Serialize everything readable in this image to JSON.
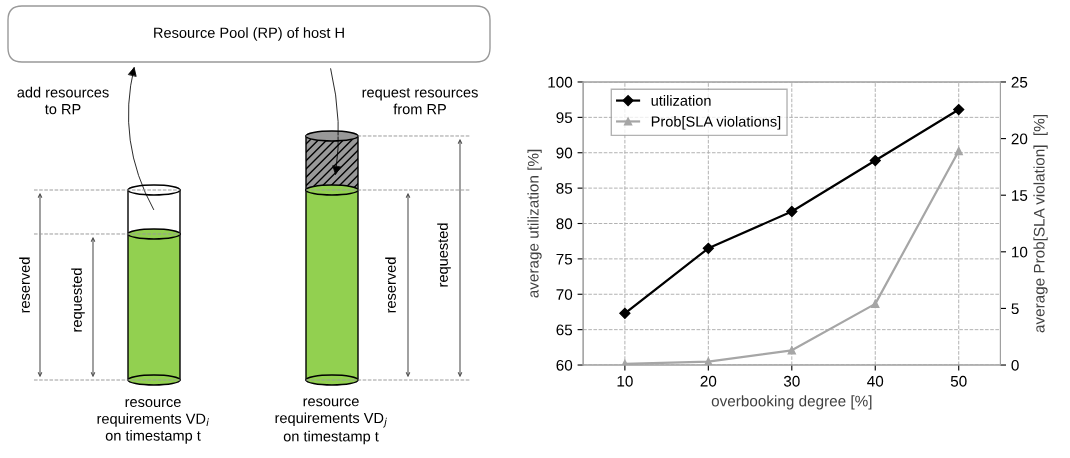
{
  "chart_data": [
    {
      "type": "other",
      "title": "Resource Pool (RP) of host H",
      "annotations": [
        "add resources\nto RP",
        "request resources\nfrom RP",
        "reserved",
        "requested",
        "reserved",
        "requested",
        "resource\nrequirements VD$_{i}$\non timestamp t",
        "resource\nrequirements VD$_{j}$\non timestamp t"
      ]
    },
    {
      "type": "line",
      "categories": [
        "10",
        "20",
        "30",
        "40",
        "50"
      ],
      "xlabel": "overbooking degree [%]",
      "ylabel": "average utilization [%]",
      "y2label": "average Prob[SLA violation]  [%]",
      "ylim": [
        60,
        100
      ],
      "yticks": [
        60,
        65,
        70,
        75,
        80,
        85,
        90,
        95,
        100
      ],
      "y2lim": [
        0,
        25
      ],
      "y2ticks": [
        0,
        5,
        10,
        15,
        20,
        25
      ],
      "grid": true,
      "legend": "top left",
      "series": [
        {
          "name": "utilization",
          "color": "#000000",
          "marker": "diamond",
          "values": [
            67.3,
            76.5,
            81.7,
            88.9,
            96.1
          ]
        },
        {
          "name": "Prob[SLA violations]",
          "color": "#a6a6a6",
          "marker": "triangle",
          "axis": "y2",
          "values": [
            0.1,
            0.3,
            1.3,
            5.4,
            18.9
          ]
        }
      ]
    }
  ]
}
